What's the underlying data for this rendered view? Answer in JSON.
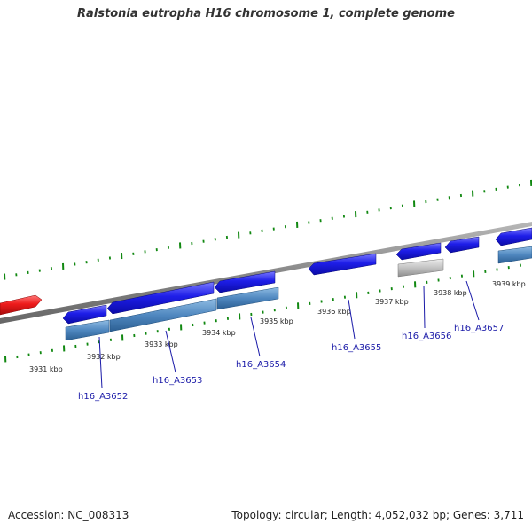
{
  "title": "Ralstonia eutropha H16 chromosome 1, complete genome",
  "colors": {
    "forward_gene": "#1515e6",
    "forward_gene_light": "#6b6bff",
    "reverse_gene": "#e81818",
    "cds_track": "#4a86c0",
    "cds_track_light": "#86b3dd",
    "pseudo_track": "#bbbbbb",
    "pseudo_track_light": "#e2e2e2",
    "backbone": "#8a8a8a",
    "tick": "#118811",
    "label": "#1a1aa8"
  },
  "ticks": [
    {
      "label": "3931 kbp"
    },
    {
      "label": "3932 kbp"
    },
    {
      "label": "3933 kbp"
    },
    {
      "label": "3934 kbp"
    },
    {
      "label": "3935 kbp"
    },
    {
      "label": "3936 kbp"
    },
    {
      "label": "3937 kbp"
    },
    {
      "label": "3938 kbp"
    },
    {
      "label": "3939 kbp"
    }
  ],
  "genes": [
    {
      "label": "h16_A3652"
    },
    {
      "label": "h16_A3653"
    },
    {
      "label": "h16_A3654"
    },
    {
      "label": "h16_A3655"
    },
    {
      "label": "h16_A3656"
    },
    {
      "label": "h16_A3657"
    }
  ],
  "footer": {
    "accession": "Accession: NC_008313",
    "info": "Topology: circular; Length: 4,052,032 bp; Genes: 3,711"
  }
}
